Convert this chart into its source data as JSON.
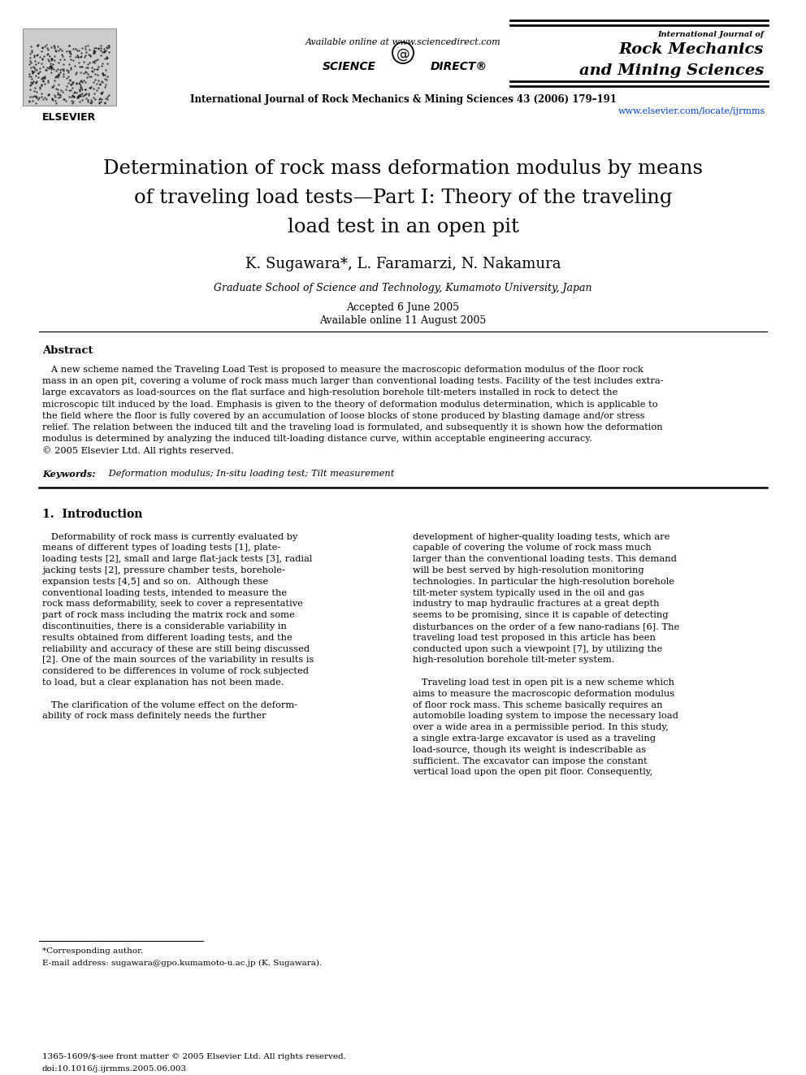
{
  "bg_color": "#ffffff",
  "available_online": "Available online at www.sciencedirect.com",
  "journal_name_small": "International Journal of",
  "journal_name_line1": "Rock Mechanics",
  "journal_name_line2": "and Mining Sciences",
  "journal_full": "International Journal of Rock Mechanics & Mining Sciences 43 (2006) 179–191",
  "url": "www.elsevier.com/locate/ijrmms",
  "title_line1": "Determination of rock mass deformation modulus by means",
  "title_line2": "of traveling load tests—Part I: Theory of the traveling",
  "title_line3": "load test in an open pit",
  "authors": "K. Sugawara*, L. Faramarzi, N. Nakamura",
  "affiliation": "Graduate School of Science and Technology, Kumamoto University, Japan",
  "date1": "Accepted 6 June 2005",
  "date2": "Available online 11 August 2005",
  "abstract_title": "Abstract",
  "abstract_lines": [
    "   A new scheme named the Traveling Load Test is proposed to measure the macroscopic deformation modulus of the floor rock",
    "mass in an open pit, covering a volume of rock mass much larger than conventional loading tests. Facility of the test includes extra-",
    "large excavators as load-sources on the flat surface and high-resolution borehole tilt-meters installed in rock to detect the",
    "microscopic tilt induced by the load. Emphasis is given to the theory of deformation modulus determination, which is applicable to",
    "the field where the floor is fully covered by an accumulation of loose blocks of stone produced by blasting damage and/or stress",
    "relief. The relation between the induced tilt and the traveling load is formulated, and subsequently it is shown how the deformation",
    "modulus is determined by analyzing the induced tilt-loading distance curve, within acceptable engineering accuracy.",
    "© 2005 Elsevier Ltd. All rights reserved."
  ],
  "keywords_label": "Keywords:",
  "keywords_text": " Deformation modulus; In-situ loading test; Tilt measurement",
  "sec1_heading": "1.  Introduction",
  "sec1_col1": [
    "   Deformability of rock mass is currently evaluated by",
    "means of different types of loading tests [1], plate-",
    "loading tests [2], small and large flat-jack tests [3], radial",
    "jacking tests [2], pressure chamber tests, borehole-",
    "expansion tests [4,5] and so on.  Although these",
    "conventional loading tests, intended to measure the",
    "rock mass deformability, seek to cover a representative",
    "part of rock mass including the matrix rock and some",
    "discontinuities, there is a considerable variability in",
    "results obtained from different loading tests, and the",
    "reliability and accuracy of these are still being discussed",
    "[2]. One of the main sources of the variability in results is",
    "considered to be differences in volume of rock subjected",
    "to load, but a clear explanation has not been made.",
    "",
    "   The clarification of the volume effect on the deform-",
    "ability of rock mass definitely needs the further"
  ],
  "sec1_col2": [
    "development of higher-quality loading tests, which are",
    "capable of covering the volume of rock mass much",
    "larger than the conventional loading tests. This demand",
    "will be best served by high-resolution monitoring",
    "technologies. In particular the high-resolution borehole",
    "tilt-meter system typically used in the oil and gas",
    "industry to map hydraulic fractures at a great depth",
    "seems to be promising, since it is capable of detecting",
    "disturbances on the order of a few nano-radians [6]. The",
    "traveling load test proposed in this article has been",
    "conducted upon such a viewpoint [7], by utilizing the",
    "high-resolution borehole tilt-meter system.",
    "",
    "   Traveling load test in open pit is a new scheme which",
    "aims to measure the macroscopic deformation modulus",
    "of floor rock mass. This scheme basically requires an",
    "automobile loading system to impose the necessary load",
    "over a wide area in a permissible period. In this study,",
    "a single extra-large excavator is used as a traveling",
    "load-source, though its weight is indescribable as",
    "sufficient. The excavator can impose the constant",
    "vertical load upon the open pit floor. Consequently,"
  ],
  "footnote1": "*Corresponding author.",
  "footnote2": "E-mail address: sugawara@gpo.kumamoto-u.ac.jp (K. Sugawara).",
  "footer1": "1365-1609/$-see front matter © 2005 Elsevier Ltd. All rights reserved.",
  "footer2": "doi:10.1016/j.ijrmms.2005.06.003"
}
